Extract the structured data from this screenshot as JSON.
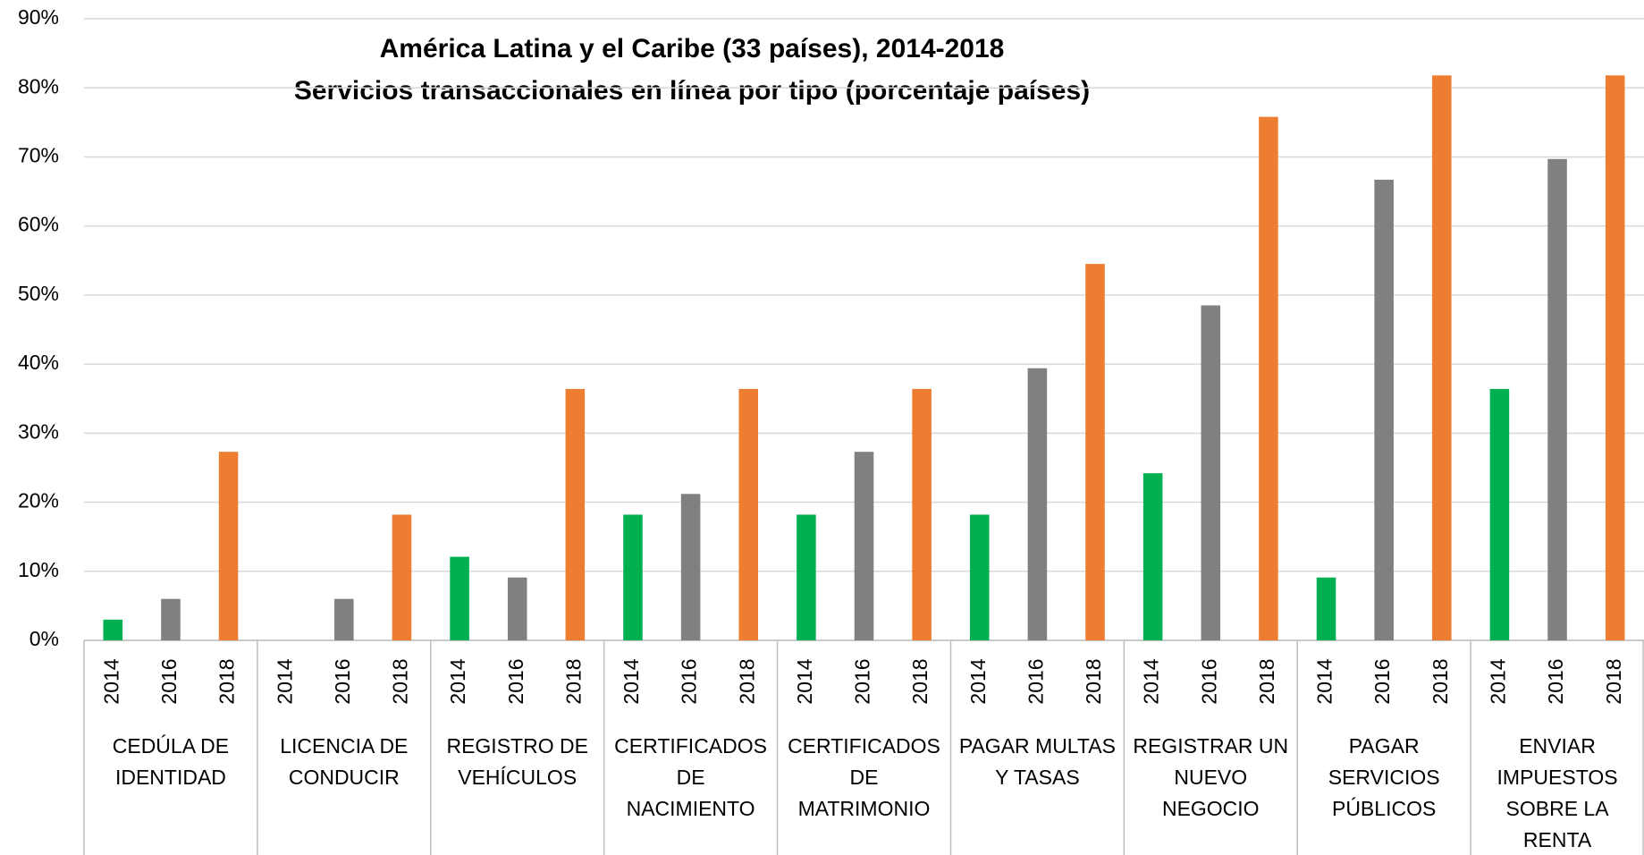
{
  "chart_data": {
    "type": "bar",
    "title": "América Latina y el Caribe (33 países), 2014-2018",
    "subtitle": "Servicios transaccionales en línea por tipo (porcentaje países)",
    "categories": [
      "CEDÚLA DE IDENTIDAD",
      "LICENCIA DE CONDUCIR",
      "REGISTRO DE VEHÍCULOS",
      "CERTIFICADOS DE NACIMIENTO",
      "CERTIFICADOS DE MATRIMONIO",
      "PAGAR MULTAS Y TASAS",
      "REGISTRAR UN NUEVO NEGOCIO",
      "PAGAR SERVICIOS PÚBLICOS",
      "ENVIAR IMPUESTOS SOBRE LA RENTA"
    ],
    "series": [
      {
        "name": "2014",
        "color": "#00b050",
        "values": [
          3,
          0,
          12.1,
          18.2,
          18.2,
          18.2,
          24.2,
          9.1,
          36.4
        ]
      },
      {
        "name": "2016",
        "color": "#808080",
        "values": [
          6,
          6,
          9.1,
          21.2,
          27.3,
          39.4,
          48.5,
          66.7,
          69.7
        ]
      },
      {
        "name": "2018",
        "color": "#ed7d31",
        "values": [
          27.3,
          18.2,
          36.4,
          36.4,
          36.4,
          54.5,
          75.8,
          81.8,
          81.8
        ]
      }
    ],
    "ylim": [
      0,
      90
    ],
    "yticks": [
      {
        "value": 0,
        "label": "0%"
      },
      {
        "value": 10,
        "label": "10%"
      },
      {
        "value": 20,
        "label": "20%"
      },
      {
        "value": 30,
        "label": "30%"
      },
      {
        "value": 40,
        "label": "40%"
      },
      {
        "value": 50,
        "label": "50%"
      },
      {
        "value": 60,
        "label": "60%"
      },
      {
        "value": 70,
        "label": "70%"
      },
      {
        "value": 80,
        "label": "80%"
      },
      {
        "value": 90,
        "label": "90%"
      }
    ],
    "grid": true
  }
}
